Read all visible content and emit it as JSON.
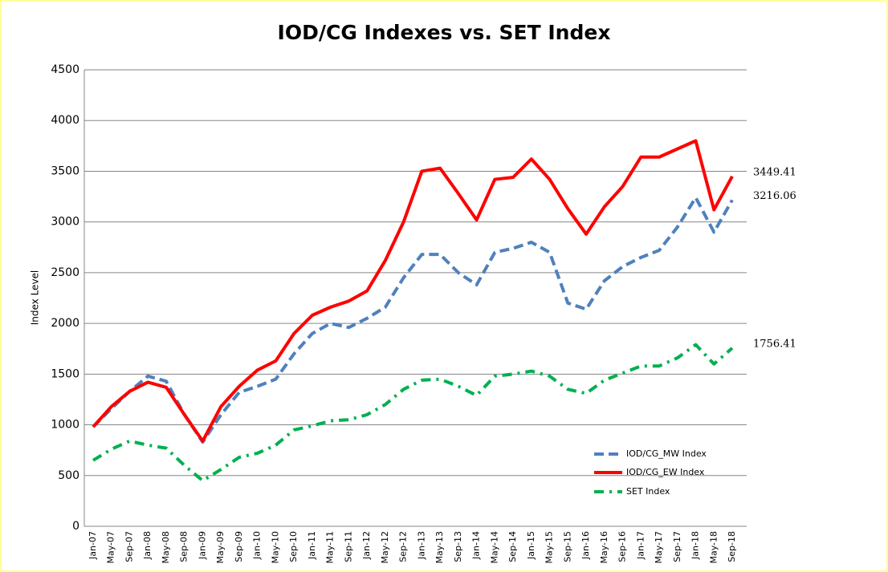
{
  "chart_data": {
    "type": "line",
    "title": "IOD/CG Indexes vs. SET Index",
    "y_label": "Index Level",
    "categories": [
      "Jan-07",
      "May-07",
      "Sep-07",
      "Jan-08",
      "May-08",
      "Sep-08",
      "Jan-09",
      "May-09",
      "Sep-09",
      "Jan-10",
      "May-10",
      "Sep-10",
      "Jan-11",
      "May-11",
      "Sep-11",
      "Jan-12",
      "May-12",
      "Sep-12",
      "Jan-13",
      "May-13",
      "Sep-13",
      "Jan-14",
      "May-14",
      "Sep-14",
      "Jan-15",
      "May-15",
      "Sep-15",
      "Jan-16",
      "May-16",
      "Sep-16",
      "Jan-17",
      "May-17",
      "Sep-17",
      "Jan-18",
      "May-18",
      "Sep-18"
    ],
    "series": [
      {
        "name": "IOD/CG_MW Index",
        "color": "#4f81bd",
        "line_style": "dashed",
        "values": [
          980,
          1160,
          1330,
          1480,
          1430,
          1100,
          830,
          1100,
          1320,
          1380,
          1450,
          1700,
          1900,
          2000,
          1960,
          2050,
          2160,
          2450,
          2680,
          2680,
          2500,
          2380,
          2700,
          2740,
          2800,
          2700,
          2200,
          2140,
          2420,
          2560,
          2650,
          2720,
          2950,
          3240,
          2900,
          3216.06
        ]
      },
      {
        "name": "IOD/CG_EW Index",
        "color": "#ff0000",
        "line_style": "solid",
        "values": [
          980,
          1180,
          1330,
          1420,
          1370,
          1100,
          840,
          1180,
          1380,
          1540,
          1630,
          1900,
          2080,
          2160,
          2220,
          2320,
          2620,
          3000,
          3500,
          3530,
          3280,
          3020,
          3420,
          3440,
          3620,
          3420,
          3130,
          2880,
          3150,
          3350,
          3640,
          3640,
          3720,
          3800,
          3120,
          3449.41
        ]
      },
      {
        "name": "SET Index",
        "color": "#00b050",
        "line_style": "dashdot",
        "values": [
          650,
          760,
          840,
          800,
          770,
          600,
          450,
          560,
          680,
          720,
          800,
          950,
          990,
          1040,
          1050,
          1100,
          1200,
          1350,
          1440,
          1450,
          1380,
          1290,
          1480,
          1500,
          1530,
          1480,
          1350,
          1310,
          1440,
          1510,
          1580,
          1580,
          1660,
          1790,
          1600,
          1756.41
        ]
      }
    ],
    "ylim": [
      0,
      4500
    ],
    "yticks": [
      0,
      500,
      1000,
      1500,
      2000,
      2500,
      3000,
      3500,
      4000,
      4500
    ],
    "grid": true,
    "legend_position": "lower right"
  }
}
